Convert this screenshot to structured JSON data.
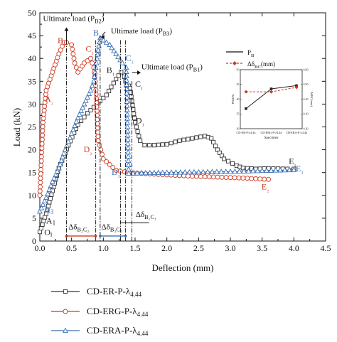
{
  "chart_data": {
    "type": "line",
    "xlabel": "Deflection (mm)",
    "ylabel": "Load (kN)",
    "xlim": [
      0,
      4.5
    ],
    "ylim": [
      0,
      50
    ],
    "xticks": [
      "0.0",
      "0.5",
      "1.0",
      "1.5",
      "2.0",
      "2.5",
      "3.0",
      "3.5",
      "4.0",
      "4.5"
    ],
    "yticks": [
      "0",
      "5",
      "10",
      "15",
      "20",
      "25",
      "30",
      "35",
      "40",
      "45",
      "50"
    ],
    "grid": false,
    "legend_position": "bottom",
    "series": [
      {
        "name": "CD-ER-P-λ4.44",
        "color": "#333333",
        "marker": "square",
        "x": [
          0,
          0.1,
          0.2,
          0.3,
          0.45,
          0.6,
          0.75,
          0.9,
          1.05,
          1.2,
          1.28,
          1.33,
          1.37,
          1.4,
          1.42,
          1.5,
          1.58,
          1.65,
          1.8,
          2.0,
          2.2,
          2.4,
          2.6,
          2.7,
          2.8,
          2.9,
          3.1,
          3.2,
          3.4,
          3.6,
          3.9,
          4.0
        ],
        "y": [
          2,
          6,
          11,
          16,
          21,
          25.5,
          28,
          30,
          32,
          35.5,
          37,
          36,
          34,
          34,
          33.5,
          26,
          22,
          21,
          21,
          21.2,
          22,
          22.5,
          23,
          22.5,
          20,
          18,
          16.5,
          16,
          15.8,
          15.9,
          15.8,
          15.8
        ]
      },
      {
        "name": "CD-ERG-P-λ4.44",
        "color": "#cc3a22",
        "marker": "circle",
        "x": [
          0,
          0.05,
          0.1,
          0.2,
          0.3,
          0.38,
          0.42,
          0.5,
          0.55,
          0.6,
          0.7,
          0.8,
          0.85,
          0.88,
          0.92,
          1.0,
          1.2,
          1.4,
          1.6,
          2.0,
          2.4,
          2.8,
          3.2,
          3.6
        ],
        "y": [
          10,
          26,
          33,
          37,
          41,
          43.5,
          43.5,
          43,
          39,
          37,
          39,
          40,
          38,
          34,
          22,
          18,
          15.5,
          15,
          14.8,
          14.5,
          14.2,
          14,
          13.8,
          13.5
        ]
      },
      {
        "name": "CD-ERA-P-λ4.44",
        "color": "#3a6fb5",
        "marker": "triangle",
        "x": [
          0,
          0.1,
          0.2,
          0.3,
          0.4,
          0.5,
          0.6,
          0.7,
          0.8,
          0.85,
          0.9,
          0.95,
          1.0,
          1.1,
          1.2,
          1.3,
          1.36,
          1.38,
          1.4,
          1.6,
          2.0,
          2.5,
          3.0,
          3.5,
          4.0
        ],
        "y": [
          6.5,
          9.5,
          13,
          16,
          20,
          23.5,
          27,
          30,
          33,
          35,
          40,
          44.5,
          44,
          43,
          41,
          39,
          38,
          25,
          14.8,
          14.9,
          15,
          15.1,
          15.2,
          15.4,
          15.6
        ]
      }
    ],
    "annotations": {
      "point_labels": [
        {
          "text": "B₂",
          "x": 0.28,
          "y": 43.3,
          "color": "#cc3a22"
        },
        {
          "text": "C₂",
          "x": 0.72,
          "y": 41.5,
          "color": "#cc3a22"
        },
        {
          "text": "A₂",
          "x": 0.08,
          "y": 30.5,
          "color": "#cc3a22"
        },
        {
          "text": "D₂",
          "x": 0.69,
          "y": 19.5,
          "color": "#cc3a22"
        },
        {
          "text": "E₂",
          "x": 3.49,
          "y": 11.3,
          "color": "#cc3a22"
        },
        {
          "text": "B₃",
          "x": 0.84,
          "y": 45,
          "color": "#3a6fb5"
        },
        {
          "text": "C₃",
          "x": 1.35,
          "y": 39.5,
          "color": "#3a6fb5"
        },
        {
          "text": "D₃",
          "x": 1.13,
          "y": 14.5,
          "color": "#3a6fb5"
        },
        {
          "text": "E₃",
          "x": 4.03,
          "y": 15.3,
          "color": "#3a6fb5"
        },
        {
          "text": "A3",
          "x": 0.07,
          "y": 6.2,
          "color": "#3a6fb5"
        },
        {
          "text": "B₁",
          "x": 1.05,
          "y": 36.8,
          "color": "#222222"
        },
        {
          "text": "C₁",
          "x": 1.5,
          "y": 33.8,
          "color": "#222222"
        },
        {
          "text": "D₁",
          "x": 1.51,
          "y": 25.8,
          "color": "#222222"
        },
        {
          "text": "E₁",
          "x": 3.92,
          "y": 16.9,
          "color": "#222222"
        },
        {
          "text": "A1",
          "x": 0.1,
          "y": 3.8,
          "color": "#222222"
        },
        {
          "text": "Oi",
          "x": 0.07,
          "y": 1.3,
          "color": "#222222"
        }
      ],
      "ultimate_labels": [
        {
          "text": "Ultimate load (P",
          "sub": "B2",
          "close": ")",
          "x": 0.05,
          "y": 48.2
        },
        {
          "text": "Ultimate load (P",
          "sub": "B3",
          "close": ")",
          "x": 1.12,
          "y": 45.5
        },
        {
          "text": "Ultimate load (P",
          "sub": "B1",
          "close": ")",
          "x": 1.6,
          "y": 37.6
        }
      ],
      "delta_labels": [
        {
          "text": "Δδ",
          "sub": "B₂C₂",
          "x": 0.45,
          "y": 2.6
        },
        {
          "text": "Δδ",
          "sub": "B₃C₃",
          "x": 0.97,
          "y": 2.6
        },
        {
          "text": "Δδ",
          "sub": "B₁C₁",
          "x": 1.51,
          "y": 5.3
        }
      ]
    },
    "inset": {
      "legend": [
        {
          "label": "P",
          "sub": "B"
        },
        {
          "label": "Δδ",
          "sub": "BC",
          "tail": "(mm)"
        }
      ],
      "categories": [
        "CD-ER-P-λ4.44",
        "CD-ERG-P-λ4.44",
        "CD-ERA-P-λ4.44"
      ],
      "xlabel": "Specimen",
      "ylabel_left": "PB(kN)",
      "ylabel_right": "ΔδBC(mm)",
      "pb_values": [
        36.8,
        43.5,
        44.6
      ],
      "pb_ylim": [
        30,
        50
      ],
      "delta_values": [
        0.45,
        0.45,
        0.48
      ],
      "delta_ylim": [
        0.2,
        0.6
      ]
    }
  }
}
